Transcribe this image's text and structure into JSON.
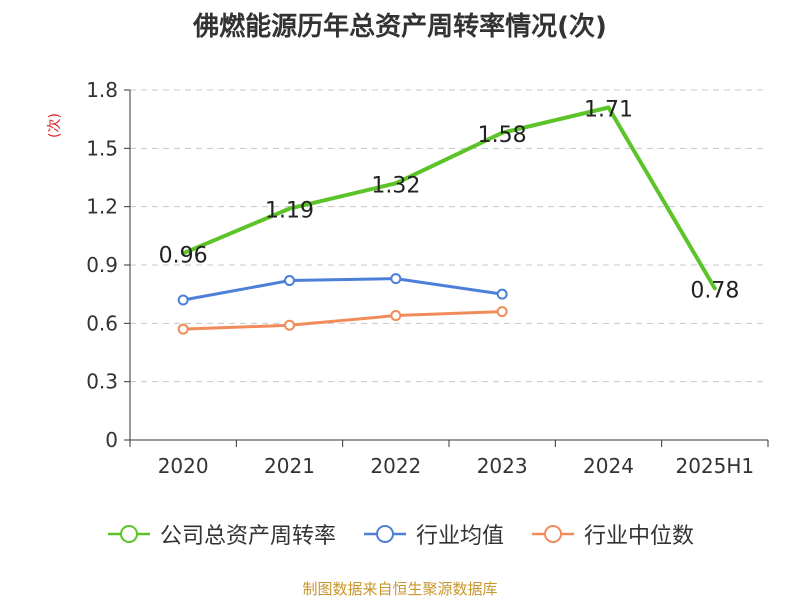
{
  "chart_data": {
    "type": "line",
    "title": "佛燃能源历年总资产周转率情况(次)",
    "ylabel": "(次)",
    "categories": [
      "2020",
      "2021",
      "2022",
      "2023",
      "2024",
      "2025H1"
    ],
    "ylim": [
      0,
      1.8
    ],
    "yticks": [
      "0",
      "0.3",
      "0.6",
      "0.9",
      "1.2",
      "1.5",
      "1.8"
    ],
    "grid": true,
    "legend_position": "bottom",
    "series": [
      {
        "name": "公司总资产周转率",
        "color": "#5cc428",
        "values": [
          0.96,
          1.19,
          1.32,
          1.58,
          1.71,
          0.78
        ],
        "labels": [
          "0.96",
          "1.19",
          "1.32",
          "1.58",
          "1.71",
          "0.78"
        ],
        "markers": false
      },
      {
        "name": "行业均值",
        "color": "#4c7fd8",
        "values": [
          0.72,
          0.82,
          0.83,
          0.75,
          null,
          null
        ],
        "markers": true
      },
      {
        "name": "行业中位数",
        "color": "#f28b5a",
        "values": [
          0.57,
          0.59,
          0.64,
          0.66,
          null,
          null
        ],
        "markers": true
      }
    ]
  },
  "source_text": "制图数据来自恒生聚源数据库"
}
